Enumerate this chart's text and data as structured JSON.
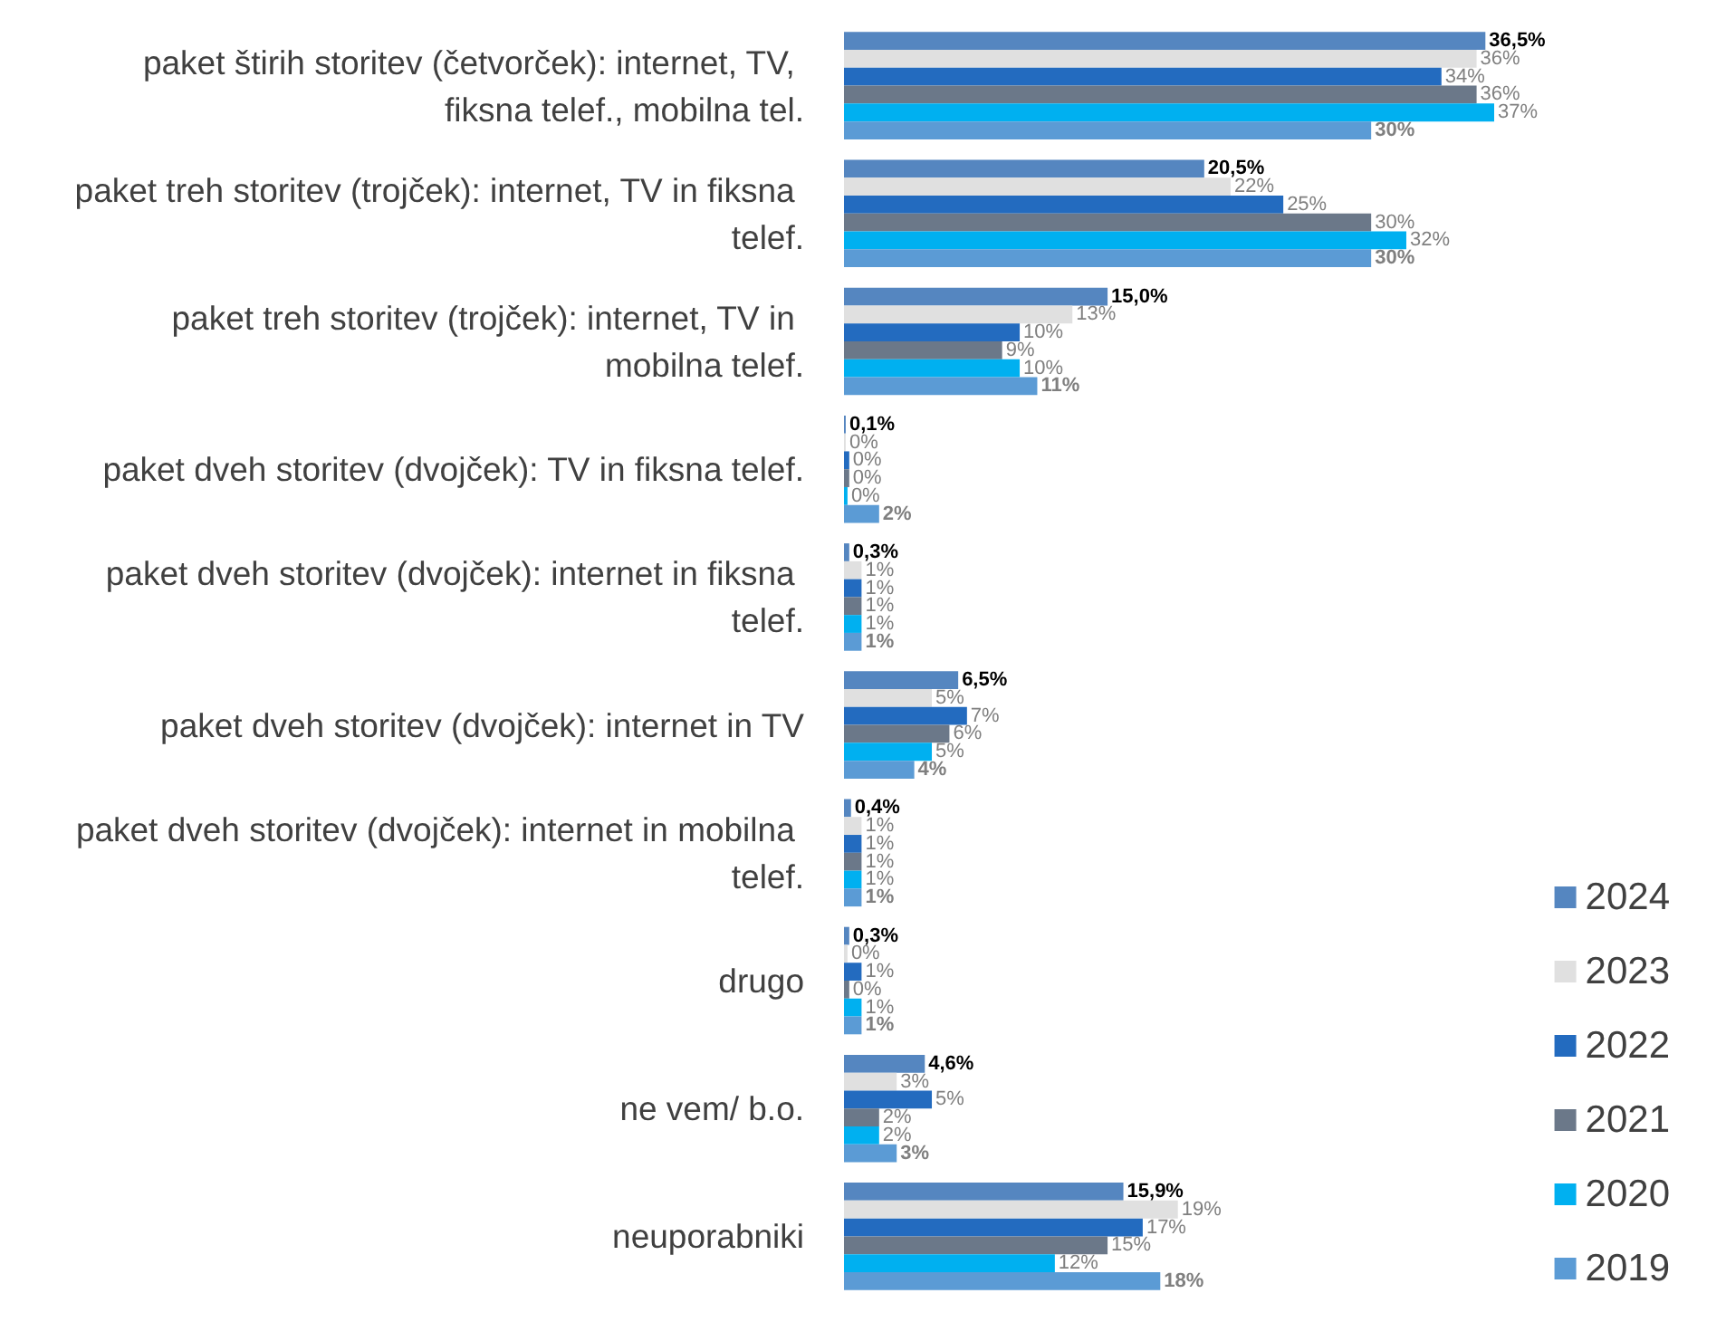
{
  "chart_data": {
    "type": "bar",
    "orientation": "horizontal",
    "legend": "bottom right",
    "categories": [
      "paket štirih storitev (četvorček): internet, TV, fiksna telef., mobilna tel.",
      "paket treh storitev (trojček): internet, TV in fiksna telef.",
      "paket treh storitev (trojček): internet, TV in mobilna telef.",
      "paket dveh storitev (dvojček): TV in fiksna telef.",
      "paket dveh storitev (dvojček): internet in fiksna telef.",
      "paket dveh storitev (dvojček): internet in TV",
      "paket dveh storitev (dvojček): internet in mobilna telef.",
      "drugo",
      "ne vem/ b.o.",
      "neuporabniki"
    ],
    "series": [
      {
        "name": "2024",
        "color": "#5586c0",
        "values": [
          36.5,
          20.5,
          15.0,
          0.1,
          0.3,
          6.5,
          0.4,
          0.3,
          4.6,
          15.9
        ],
        "value_labels": [
          "36,5%",
          "20,5%",
          "15,0%",
          "0,1%",
          "0,3%",
          "6,5%",
          "0,4%",
          "0,3%",
          "4,6%",
          "15,9%"
        ]
      },
      {
        "name": "2023",
        "color": "#e0e0e0",
        "values": [
          36,
          22,
          13,
          0.1,
          1,
          5,
          1,
          0.2,
          3,
          19
        ],
        "value_labels": [
          "36%",
          "22%",
          "13%",
          "0%",
          "1%",
          "5%",
          "1%",
          "0%",
          "3%",
          "19%"
        ]
      },
      {
        "name": "2022",
        "color": "#236bbf",
        "values": [
          34,
          25,
          10,
          0.3,
          1,
          7,
          1,
          1,
          5,
          17
        ],
        "value_labels": [
          "34%",
          "25%",
          "10%",
          "0%",
          "1%",
          "7%",
          "1%",
          "1%",
          "5%",
          "17%"
        ]
      },
      {
        "name": "2021",
        "color": "#6b7889",
        "values": [
          36,
          30,
          9,
          0.3,
          1,
          6,
          1,
          0.3,
          2,
          15
        ],
        "value_labels": [
          "36%",
          "30%",
          "9%",
          "0%",
          "1%",
          "6%",
          "1%",
          "0%",
          "2%",
          "15%"
        ]
      },
      {
        "name": "2020",
        "color": "#00b0f0",
        "values": [
          37,
          32,
          10,
          0.2,
          1,
          5,
          1,
          1,
          2,
          12
        ],
        "value_labels": [
          "37%",
          "32%",
          "10%",
          "0%",
          "1%",
          "5%",
          "1%",
          "1%",
          "2%",
          "12%"
        ]
      },
      {
        "name": "2019",
        "color": "#5b9bd5",
        "values": [
          30,
          30,
          11,
          2,
          1,
          4,
          1,
          1,
          3,
          18
        ],
        "value_labels": [
          "30%",
          "30%",
          "11%",
          "2%",
          "1%",
          "4%",
          "1%",
          "1%",
          "3%",
          "18%"
        ]
      }
    ]
  }
}
